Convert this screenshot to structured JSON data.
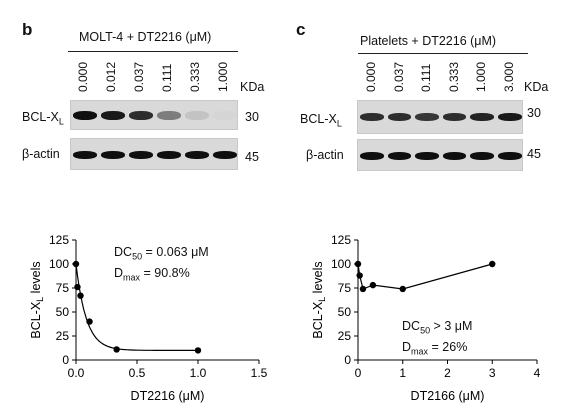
{
  "panel_b": {
    "letter": "b",
    "header": "MOLT-4 + DT2216 (μM)",
    "concentrations": [
      "0.000",
      "0.012",
      "0.037",
      "0.111",
      "0.333",
      "1.000"
    ],
    "kda_label": "KDa",
    "rows": [
      {
        "label": "BCL-X",
        "sub": "L",
        "mw": "30"
      },
      {
        "label": "β-actin",
        "sub": "",
        "mw": "45"
      }
    ],
    "band_intensity": {
      "bcl_xl": [
        1.0,
        0.95,
        0.85,
        0.45,
        0.1,
        0.05
      ],
      "actin": [
        1.0,
        1.0,
        1.0,
        1.0,
        1.0,
        1.0
      ]
    },
    "annotation": {
      "dc50_label": "DC",
      "dc50_sub": "50",
      "dc50_value": " = 0.063 μM",
      "dmax_label": "D",
      "dmax_sub": "max",
      "dmax_value": " = 90.8%"
    }
  },
  "panel_c": {
    "letter": "c",
    "header": "Platelets + DT2216 (μM)",
    "concentrations": [
      "0.000",
      "0.037",
      "0.111",
      "0.333",
      "1.000",
      "3.000"
    ],
    "kda_label": "KDa",
    "rows": [
      {
        "label": "BCL-X",
        "sub": "L",
        "mw": "30"
      },
      {
        "label": "β-actin",
        "sub": "",
        "mw": "45"
      }
    ],
    "band_intensity": {
      "bcl_xl": [
        0.85,
        0.85,
        0.8,
        0.85,
        0.9,
        0.95
      ],
      "actin": [
        1.0,
        1.0,
        1.0,
        1.0,
        1.0,
        1.0
      ]
    },
    "annotation": {
      "dc50_label": "DC",
      "dc50_sub": "50",
      "dc50_value": " > 3 μM",
      "dmax_label": "D",
      "dmax_sub": "max",
      "dmax_value": " = 26%"
    }
  },
  "chart_data": [
    {
      "type": "scatter",
      "xlabel": "DT2216 (μM)",
      "ylabel_main": "BCL-X",
      "ylabel_sub": "L",
      "ylabel_tail": " levels",
      "xlim": [
        0,
        1.5
      ],
      "ylim": [
        0,
        125
      ],
      "xticks": [
        0.0,
        0.5,
        1.0,
        1.5
      ],
      "xtick_labels": [
        "0.0",
        "0.5",
        "1.0",
        "1.5"
      ],
      "yticks": [
        0,
        25,
        50,
        75,
        100,
        125
      ],
      "x": [
        0.0,
        0.012,
        0.037,
        0.111,
        0.333,
        1.0
      ],
      "y": [
        100,
        76,
        67,
        40,
        11,
        10
      ],
      "fit": "exponential decay",
      "grid": false
    },
    {
      "type": "line",
      "xlabel": "DT2166 (μM)",
      "ylabel_main": "BCL-X",
      "ylabel_sub": "L",
      "ylabel_tail": " levels",
      "xlim": [
        0,
        4
      ],
      "ylim": [
        0,
        125
      ],
      "xticks": [
        0,
        1,
        2,
        3,
        4
      ],
      "xtick_labels": [
        "0",
        "1",
        "2",
        "3",
        "4"
      ],
      "yticks": [
        0,
        25,
        50,
        75,
        100,
        125
      ],
      "x": [
        0.0,
        0.037,
        0.111,
        0.333,
        1.0,
        3.0
      ],
      "y": [
        100,
        88,
        74,
        78,
        74,
        100
      ],
      "grid": false
    }
  ]
}
